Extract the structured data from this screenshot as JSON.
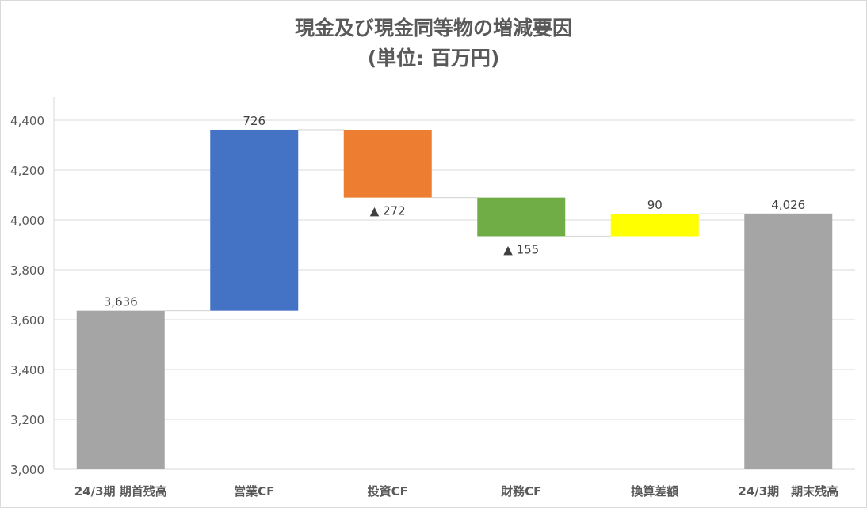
{
  "chart_data": {
    "type": "bar",
    "subtype": "waterfall",
    "title_line1": "現金及び現金同等物の増減要因",
    "title_line2": "(単位: 百万円)",
    "categories": [
      "24/3期 期首残高",
      "営業CF",
      "投資CF",
      "財務CF",
      "換算差額",
      "24/3期　期末残高"
    ],
    "bars": [
      {
        "kind": "total",
        "start": 0,
        "end": 3636,
        "label": "3,636",
        "color": "#a5a5a5"
      },
      {
        "kind": "delta",
        "start": 3636,
        "end": 4362,
        "label": "726",
        "color": "#4472c4"
      },
      {
        "kind": "delta",
        "start": 4362,
        "end": 4090,
        "label": "▲ 272",
        "color": "#ed7d31"
      },
      {
        "kind": "delta",
        "start": 4090,
        "end": 3935,
        "label": "▲ 155",
        "color": "#70ad47"
      },
      {
        "kind": "delta",
        "start": 3935,
        "end": 4025,
        "label": "90",
        "color": "#ffff00"
      },
      {
        "kind": "total",
        "start": 0,
        "end": 4026,
        "label": "4,026",
        "color": "#a5a5a5"
      }
    ],
    "ylim": [
      3000,
      4400
    ],
    "yticks": [
      3000,
      3200,
      3400,
      3600,
      3800,
      4000,
      4200,
      4400
    ],
    "ytick_labels": [
      "3,000",
      "3,200",
      "3,400",
      "3,600",
      "3,800",
      "4,000",
      "4,200",
      "4,400"
    ],
    "grid": true,
    "connectors": true,
    "legend": "none"
  }
}
